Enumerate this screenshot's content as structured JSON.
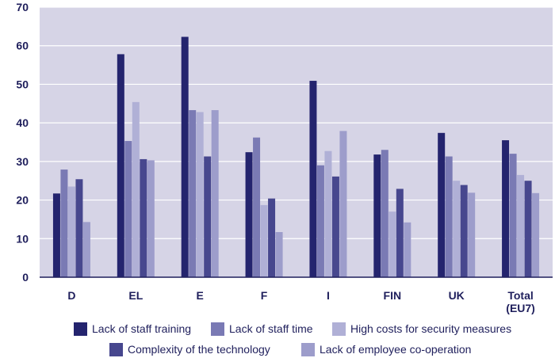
{
  "chart_data": {
    "type": "bar",
    "title": "",
    "xlabel": "",
    "ylabel": "",
    "ylim": [
      0,
      70
    ],
    "yticks": [
      0,
      10,
      20,
      30,
      40,
      50,
      60,
      70
    ],
    "grid": true,
    "legend_position": "bottom",
    "categories": [
      [
        "D"
      ],
      [
        "EL"
      ],
      [
        "E"
      ],
      [
        "F"
      ],
      [
        "I"
      ],
      [
        "FIN"
      ],
      [
        "UK"
      ],
      [
        "Total",
        "(EU7)"
      ]
    ],
    "series": [
      {
        "name": "Lack of staff training",
        "color": "#24246e",
        "values": [
          21.7,
          57.8,
          62.3,
          32.4,
          50.9,
          31.8,
          37.4,
          35.5
        ]
      },
      {
        "name": "Lack of staff time",
        "color": "#7a7ab4",
        "values": [
          27.9,
          35.3,
          43.3,
          36.2,
          29.0,
          33.0,
          31.3,
          32.0
        ]
      },
      {
        "name": "High costs for security measures",
        "color": "#b0b0d6",
        "values": [
          23.5,
          45.4,
          42.8,
          18.7,
          32.7,
          17.0,
          25.0,
          26.5
        ]
      },
      {
        "name": "Complexity of the technology",
        "color": "#47478e",
        "values": [
          25.4,
          30.6,
          31.3,
          20.4,
          26.1,
          22.9,
          23.9,
          25.0
        ]
      },
      {
        "name": "Lack of employee co-operation",
        "color": "#9d9dcb",
        "values": [
          14.3,
          30.3,
          43.3,
          11.7,
          37.9,
          14.2,
          21.9,
          21.8
        ]
      }
    ],
    "colors": {
      "plot_background": "#d6d4e6",
      "gridline": "#ffffff",
      "axis_text": "#1f1f5c"
    }
  }
}
